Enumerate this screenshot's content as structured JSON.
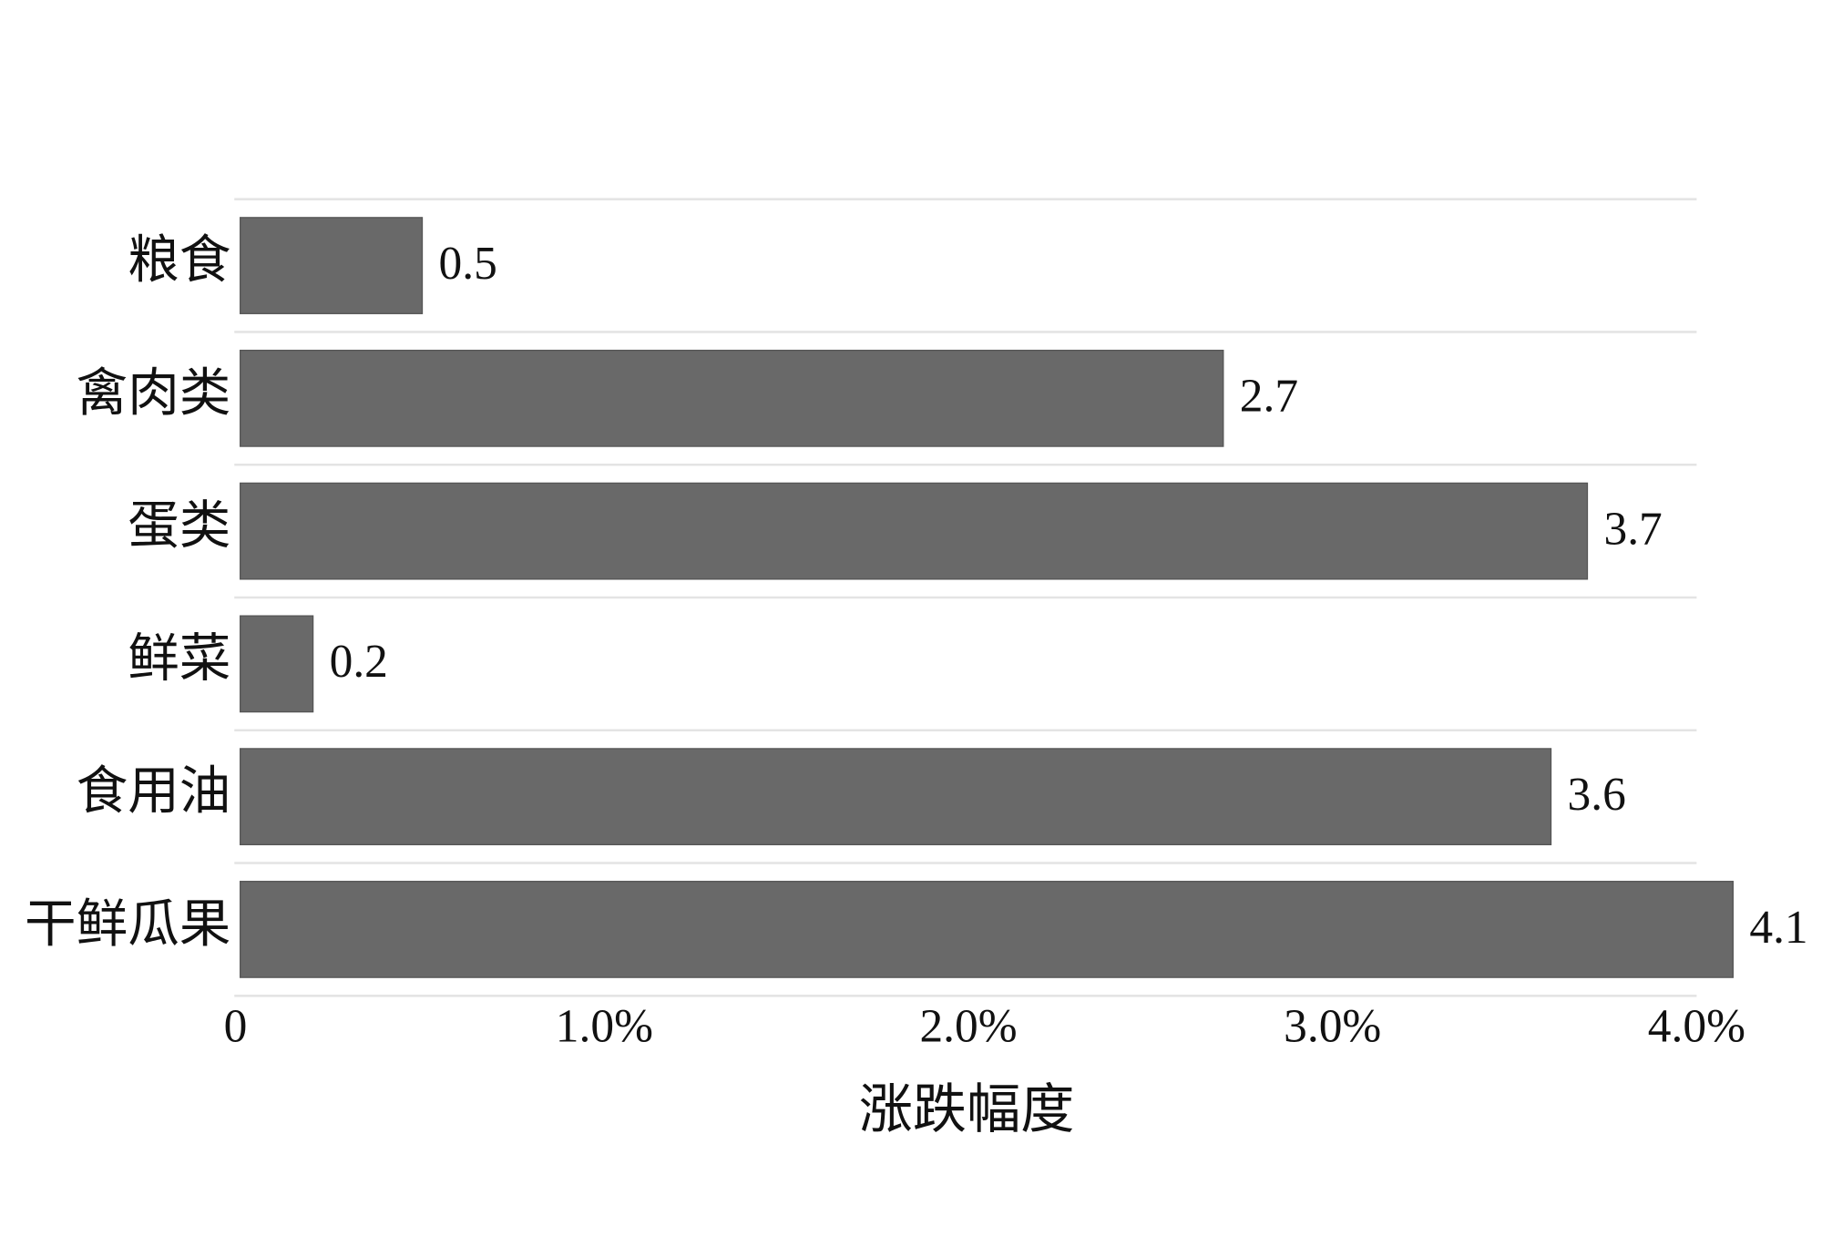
{
  "chart_data": {
    "type": "barh",
    "categories": [
      "粮食",
      "禽肉类",
      "蛋类",
      "鲜菜",
      "食用油",
      "干鲜瓜果"
    ],
    "values": [
      0.5,
      2.7,
      3.7,
      0.2,
      3.6,
      4.1
    ],
    "color": "#696969",
    "xlim": [
      0,
      4
    ],
    "xticks": [
      0,
      {
        "value": 1,
        "label": "1.0%"
      },
      {
        "value": 2,
        "label": "2.0%"
      },
      {
        "value": 3,
        "label": "3.0%"
      },
      {
        "value": 4,
        "label": "4.0%"
      }
    ],
    "xlabel": "涨跌幅度"
  }
}
